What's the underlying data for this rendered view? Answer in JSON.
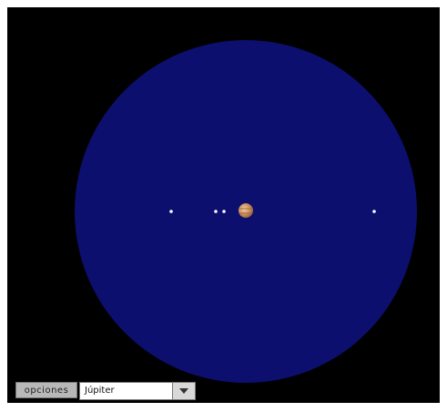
{
  "controls": {
    "button": "opciones",
    "select": "Júpiter"
  }
}
